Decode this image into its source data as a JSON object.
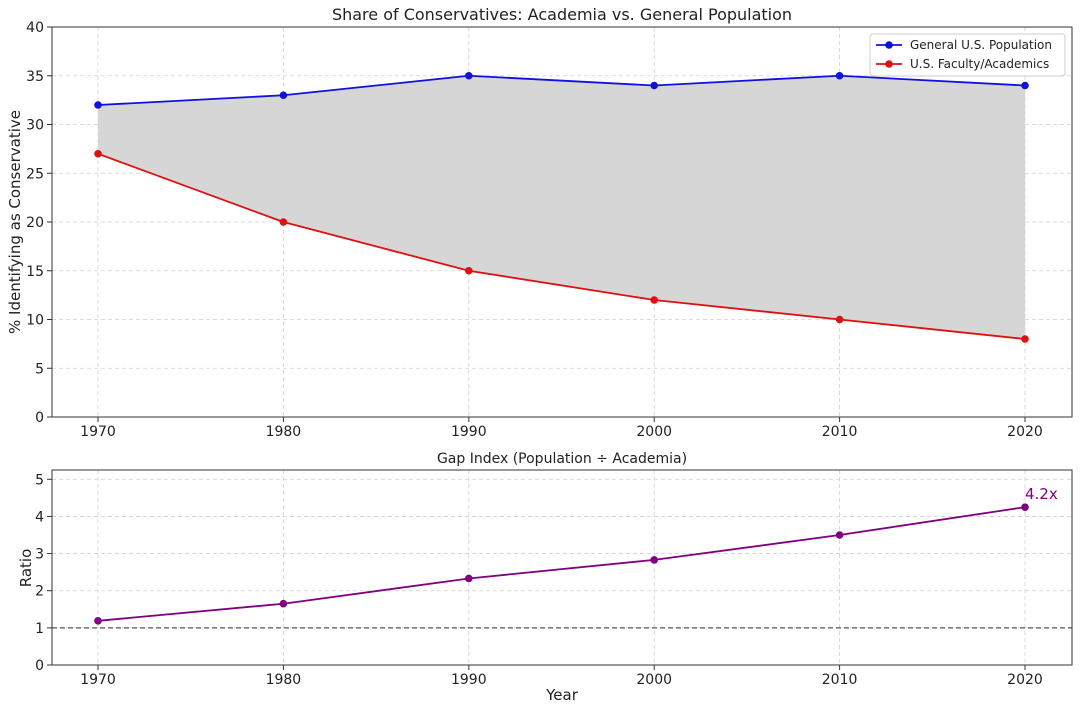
{
  "chart_data": [
    {
      "type": "line",
      "title": "Share of Conservatives: Academia vs. General Population",
      "xlabel": "",
      "ylabel": "% Identifying as Conservative",
      "x": [
        1970,
        1980,
        1990,
        2000,
        2010,
        2020
      ],
      "ylim": [
        0,
        40
      ],
      "yticks": [
        0,
        5,
        10,
        15,
        20,
        25,
        30,
        35,
        40
      ],
      "grid": true,
      "legend": "top-right",
      "fill_between": true,
      "fill_color": "#d6d6d6",
      "series": [
        {
          "name": "General U.S. Population",
          "values": [
            32,
            33,
            35,
            34,
            35,
            34
          ],
          "color": "#1010e0"
        },
        {
          "name": "U.S. Faculty/Academics",
          "values": [
            27,
            20,
            15,
            12,
            10,
            8
          ],
          "color": "#e01010"
        }
      ]
    },
    {
      "type": "line",
      "title": "Gap Index (Population ÷ Academia)",
      "xlabel": "Year",
      "ylabel": "Ratio",
      "x": [
        1970,
        1980,
        1990,
        2000,
        2010,
        2020
      ],
      "ylim": [
        0,
        5.25
      ],
      "yticks": [
        0,
        1,
        2,
        3,
        4,
        5
      ],
      "grid": true,
      "reference_line": 1,
      "series": [
        {
          "name": "Gap Index",
          "values": [
            1.19,
            1.65,
            2.33,
            2.83,
            3.5,
            4.25
          ],
          "color": "#800080"
        }
      ],
      "annotation": {
        "text": "4.2x",
        "x": 2020,
        "y": 4.25
      }
    }
  ]
}
